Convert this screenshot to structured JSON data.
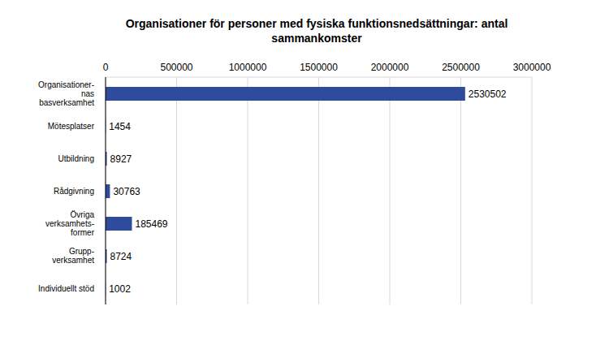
{
  "chart_data": {
    "type": "bar",
    "orientation": "horizontal",
    "title": "Organisationer för personer med fysiska funktionsnedsättningar: antal sammankomster",
    "categories": [
      "Organisationer-\nnas\nbasverksamhet",
      "Mötesplatser",
      "Utbildning",
      "Rådgivning",
      "Övriga\nverksamhets-\nformer",
      "Grupp-\nverksamhet",
      "Individuellt stöd"
    ],
    "values": [
      2530502,
      1454,
      8927,
      30763,
      185469,
      8724,
      1002
    ],
    "color": "#2f4b9b",
    "xlim": [
      0,
      3000000
    ],
    "xticks": [
      0,
      500000,
      1000000,
      1500000,
      2000000,
      2500000,
      3000000
    ],
    "grid": true,
    "data_labels": true
  }
}
